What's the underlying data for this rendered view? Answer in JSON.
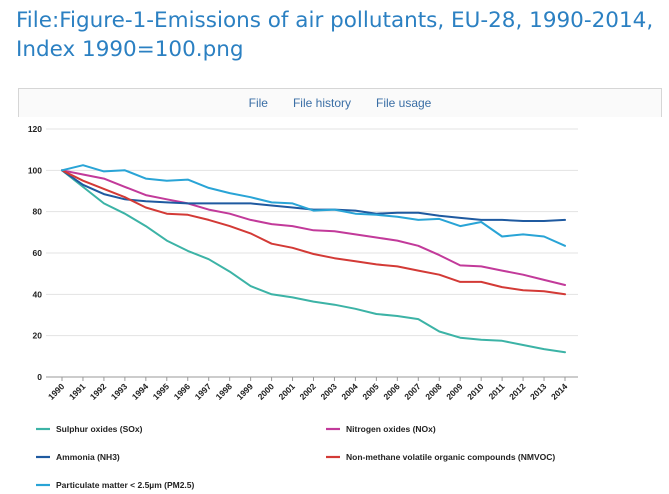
{
  "page": {
    "title": "File:Figure-1-Emissions of air pollutants, EU-28, 1990-2014, Index 1990=100.png"
  },
  "tabs": [
    {
      "label": "File"
    },
    {
      "label": "File history"
    },
    {
      "label": "File usage"
    }
  ],
  "chart_data": {
    "type": "line",
    "title": "",
    "xlabel": "",
    "ylabel": "",
    "ylim": [
      0,
      120
    ],
    "yticks": [
      0,
      20,
      40,
      60,
      80,
      100,
      120
    ],
    "grid": "horizontal",
    "legend_position": "bottom",
    "categories": [
      "1990",
      "1991",
      "1992",
      "1993",
      "1994",
      "1995",
      "1996",
      "1997",
      "1998",
      "1999",
      "2000",
      "2001",
      "2002",
      "2003",
      "2004",
      "2005",
      "2006",
      "2007",
      "2008",
      "2009",
      "2010",
      "2011",
      "2012",
      "2013",
      "2014"
    ],
    "series": [
      {
        "name": "Sulphur oxides (SOx)",
        "color": "#3cb3a6",
        "values": [
          100,
          92,
          84,
          79,
          73,
          66,
          61,
          57,
          51,
          44,
          40,
          38.5,
          36.5,
          35,
          33,
          30.5,
          29.5,
          28,
          22,
          19,
          18,
          17.5,
          15.5,
          13.5,
          12
        ]
      },
      {
        "name": "Nitrogen oxides (NOx)",
        "color": "#c23a9a",
        "values": [
          100,
          98,
          96,
          92,
          88,
          86,
          84,
          81,
          79,
          76,
          74,
          73,
          71,
          70.5,
          69,
          67.5,
          66,
          63.5,
          59,
          54,
          53.5,
          51.5,
          49.5,
          47,
          44.5
        ]
      },
      {
        "name": "Ammonia (NH3)",
        "color": "#1f5aa0",
        "values": [
          100,
          93,
          88.5,
          86,
          85,
          84.5,
          84,
          84,
          84,
          84,
          83,
          82,
          81,
          81,
          80.5,
          79,
          79.5,
          79.5,
          78,
          77,
          76,
          76,
          75.5,
          75.5,
          76
        ]
      },
      {
        "name": "Non-methane volatile organic compounds (NMVOC)",
        "color": "#d33a36",
        "values": [
          100,
          95,
          91,
          87,
          82,
          79,
          78.5,
          76,
          73,
          69.5,
          64.5,
          62.5,
          59.5,
          57.5,
          56,
          54.5,
          53.5,
          51.5,
          49.5,
          46,
          46,
          43.5,
          42,
          41.5,
          40
        ]
      },
      {
        "name": "Particulate matter < 2.5µm (PM2.5)",
        "color": "#29a4d6",
        "values": [
          100,
          102.5,
          99.5,
          100,
          96,
          95,
          95.5,
          91.5,
          89,
          87,
          84.5,
          84,
          80.5,
          81,
          79,
          78.5,
          77.5,
          76,
          76.5,
          73,
          75,
          68,
          69,
          68,
          63.5
        ]
      }
    ]
  }
}
